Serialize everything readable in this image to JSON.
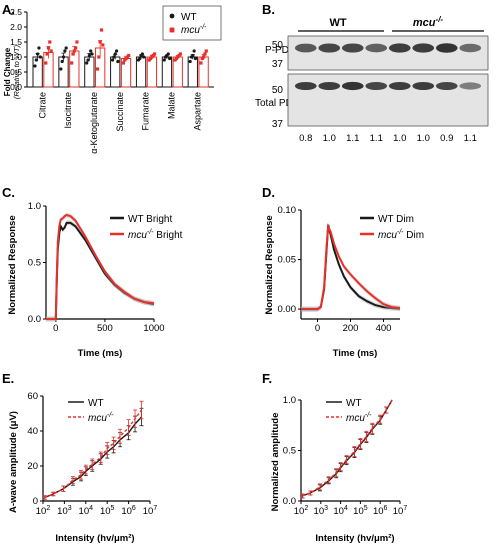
{
  "panels": {
    "a": "A.",
    "b": "B.",
    "c": "C.",
    "d": "D.",
    "e": "E.",
    "f": "F."
  },
  "colors": {
    "wt": "#1a1a1a",
    "mcu": "#e8302a",
    "bar_fill": "#ffffff",
    "band": "#2a2a2a",
    "blot_bg": "#e4e4e4",
    "shade": "#b0b0b0"
  },
  "legend": {
    "wt": "WT",
    "mcu": "mcu",
    "mcu_sup": "-/-",
    "wt_bright": "WT Bright",
    "mcu_bright": " Bright",
    "wt_dim": "WT Dim",
    "mcu_dim": " Dim"
  },
  "blot": {
    "group_wt": "WT",
    "group_mcu": "mcu",
    "group_mcu_sup": "-/-",
    "row1_label": "P-PDH",
    "row2_label": "Total PDH",
    "mw_top": [
      "50",
      "37"
    ],
    "mw_bottom": [
      "50",
      "37"
    ],
    "quant": [
      "0.8",
      "1.0",
      "1.1",
      "1.1",
      "1.0",
      "1.0",
      "0.9",
      "1.1"
    ]
  },
  "chart_data": [
    {
      "panel": "A",
      "type": "bar",
      "ylabel": "Fold Change",
      "ylabel2": "(Relative to WT)",
      "ylim": [
        0,
        2.5
      ],
      "yticks": [
        "0.0",
        "0.5",
        "1.0",
        "1.5",
        "2.0",
        "2.5"
      ],
      "categories": [
        "Citrate",
        "Isocitrate",
        "α-Ketoglutarate",
        "Succinate",
        "Fumarate",
        "Malate",
        "Aspartate"
      ],
      "series": [
        {
          "name": "WT",
          "values": [
            1.0,
            1.0,
            1.0,
            1.0,
            1.0,
            1.0,
            1.0
          ],
          "err": [
            0.12,
            0.13,
            0.12,
            0.08,
            0.07,
            0.06,
            0.08
          ],
          "points": [
            [
              0.7,
              0.9,
              1.1,
              1.3,
              1.0
            ],
            [
              0.6,
              0.85,
              1.0,
              1.2,
              1.3
            ],
            [
              0.8,
              0.9,
              1.05,
              1.2,
              1.1
            ],
            [
              0.9,
              1.0,
              1.1,
              1.2,
              0.85
            ],
            [
              0.9,
              0.95,
              1.05,
              1.1,
              1.0
            ],
            [
              0.9,
              1.0,
              1.05,
              1.1,
              0.95
            ],
            [
              0.85,
              1.0,
              1.05,
              1.2,
              0.95
            ]
          ]
        },
        {
          "name": "mcu-/-",
          "values": [
            1.15,
            1.2,
            1.3,
            0.95,
            1.0,
            1.0,
            1.0
          ],
          "err": [
            0.2,
            0.15,
            0.25,
            0.06,
            0.06,
            0.05,
            0.08
          ],
          "points": [
            [
              0.8,
              1.1,
              1.3,
              1.5,
              1.2
            ],
            [
              0.8,
              1.1,
              1.2,
              1.3,
              1.5
            ],
            [
              0.6,
              1.0,
              1.5,
              1.9,
              1.4
            ],
            [
              0.8,
              0.9,
              0.95,
              1.0,
              1.05
            ],
            [
              0.9,
              0.95,
              1.0,
              1.05,
              1.1
            ],
            [
              0.9,
              0.95,
              1.0,
              1.05,
              1.1
            ],
            [
              0.8,
              0.95,
              1.0,
              1.1,
              1.2
            ]
          ]
        }
      ]
    },
    {
      "panel": "C",
      "type": "line",
      "xlabel": "Time (ms)",
      "ylabel": "Normalized Response",
      "xlim": [
        -100,
        1000
      ],
      "ylim": [
        0,
        1.0
      ],
      "xticks": [
        "0",
        "500",
        "1000"
      ],
      "yticks": [
        "0.0",
        "0.5",
        "1.0"
      ],
      "series": [
        {
          "name": "WT Bright",
          "x": [
            -100,
            0,
            10,
            20,
            35,
            50,
            70,
            90,
            110,
            150,
            200,
            300,
            400,
            500,
            600,
            700,
            800,
            900,
            1000
          ],
          "y": [
            0,
            0,
            0.35,
            0.62,
            0.76,
            0.82,
            0.79,
            0.81,
            0.85,
            0.85,
            0.82,
            0.7,
            0.55,
            0.4,
            0.3,
            0.23,
            0.18,
            0.15,
            0.13
          ]
        },
        {
          "name": "mcu-/- Bright",
          "x": [
            -100,
            0,
            10,
            20,
            35,
            50,
            70,
            90,
            110,
            150,
            200,
            300,
            400,
            500,
            600,
            700,
            800,
            900,
            1000
          ],
          "y": [
            0,
            0,
            0.38,
            0.68,
            0.82,
            0.88,
            0.89,
            0.91,
            0.92,
            0.91,
            0.87,
            0.73,
            0.57,
            0.42,
            0.31,
            0.24,
            0.18,
            0.15,
            0.14
          ]
        }
      ]
    },
    {
      "panel": "D",
      "type": "line",
      "xlabel": "Time (ms)",
      "ylabel": "Normalized Response",
      "xlim": [
        -100,
        500
      ],
      "ylim": [
        -0.01,
        0.1
      ],
      "xticks": [
        "0",
        "200",
        "400"
      ],
      "yticks": [
        "0.00",
        "0.05",
        "0.10"
      ],
      "series": [
        {
          "name": "WT Dim",
          "x": [
            -100,
            0,
            20,
            40,
            55,
            65,
            80,
            100,
            130,
            160,
            200,
            250,
            300,
            350,
            400,
            450,
            500
          ],
          "y": [
            0,
            0,
            0.002,
            0.02,
            0.06,
            0.085,
            0.075,
            0.06,
            0.045,
            0.033,
            0.022,
            0.013,
            0.008,
            0.004,
            0.002,
            0.001,
            0.0005
          ]
        },
        {
          "name": "mcu-/- Dim",
          "x": [
            -100,
            0,
            20,
            40,
            55,
            65,
            80,
            100,
            130,
            160,
            200,
            250,
            300,
            350,
            400,
            450,
            500
          ],
          "y": [
            0,
            0,
            0.002,
            0.022,
            0.064,
            0.083,
            0.078,
            0.066,
            0.053,
            0.043,
            0.035,
            0.026,
            0.018,
            0.011,
            0.005,
            0.002,
            0.001
          ]
        }
      ]
    },
    {
      "panel": "E",
      "type": "line",
      "xlabel": "Intensity (hv/μm²)",
      "ylabel": "A-wave amplitude (μV)",
      "xscale": "log",
      "xlim": [
        100,
        10000000
      ],
      "ylim": [
        0,
        60
      ],
      "xticks": [
        "2",
        "3",
        "4",
        "5",
        "6",
        "7"
      ],
      "yticks": [
        "0",
        "20",
        "40",
        "60"
      ],
      "series": [
        {
          "name": "WT",
          "x": [
            120,
            300,
            900,
            2500,
            6000,
            10000,
            20000,
            50000,
            100000,
            200000,
            400000,
            1000000,
            2000000,
            4000000
          ],
          "y": [
            2,
            4,
            7,
            11,
            14,
            17,
            20,
            24,
            28,
            31,
            35,
            39,
            44,
            48
          ],
          "err": [
            1,
            1,
            1.5,
            2,
            2.5,
            2.5,
            3,
            3,
            3.5,
            3.5,
            4,
            4,
            4.5,
            5
          ]
        },
        {
          "name": "mcu-/-",
          "x": [
            120,
            300,
            900,
            2500,
            6000,
            10000,
            20000,
            50000,
            100000,
            200000,
            400000,
            1000000,
            2000000,
            4000000
          ],
          "y": [
            2,
            4,
            7,
            12,
            15,
            18,
            21,
            25,
            30,
            33,
            37,
            42,
            47,
            52
          ],
          "err": [
            1,
            1,
            1.5,
            2,
            2.5,
            2.5,
            3,
            3,
            3.5,
            3.5,
            4,
            4.5,
            5,
            5
          ]
        }
      ]
    },
    {
      "panel": "F",
      "type": "line",
      "xlabel": "Intensity (hv/μm²)",
      "ylabel": "Normalized amplitude",
      "xscale": "log",
      "xlim": [
        100,
        10000000
      ],
      "ylim": [
        0,
        1.0
      ],
      "xticks": [
        "2",
        "3",
        "4",
        "5",
        "6",
        "7"
      ],
      "yticks": [
        "0.0",
        "0.5",
        "1.0"
      ],
      "series": [
        {
          "name": "WT",
          "x": [
            120,
            300,
            900,
            2500,
            6000,
            10000,
            20000,
            50000,
            100000,
            200000,
            400000,
            1000000,
            2000000,
            4000000
          ],
          "y": [
            0.05,
            0.08,
            0.13,
            0.2,
            0.27,
            0.33,
            0.4,
            0.48,
            0.56,
            0.63,
            0.71,
            0.8,
            0.9,
            1.0
          ],
          "err": [
            0.02,
            0.02,
            0.03,
            0.03,
            0.04,
            0.04,
            0.04,
            0.05,
            0.05,
            0.05,
            0.05,
            0.04,
            0.03,
            0.0
          ]
        },
        {
          "name": "mcu-/-",
          "x": [
            120,
            300,
            900,
            2500,
            6000,
            10000,
            20000,
            50000,
            100000,
            200000,
            400000,
            1000000,
            2000000,
            4000000
          ],
          "y": [
            0.05,
            0.08,
            0.14,
            0.21,
            0.28,
            0.34,
            0.41,
            0.49,
            0.57,
            0.64,
            0.72,
            0.81,
            0.9,
            1.0
          ],
          "err": [
            0.02,
            0.02,
            0.03,
            0.03,
            0.04,
            0.04,
            0.04,
            0.05,
            0.05,
            0.05,
            0.05,
            0.04,
            0.03,
            0.0
          ]
        }
      ]
    }
  ]
}
